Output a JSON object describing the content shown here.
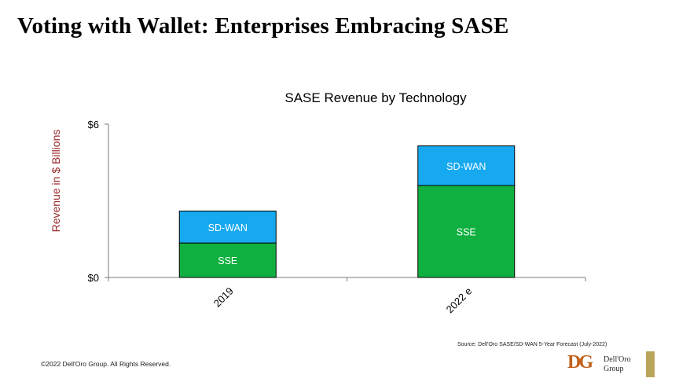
{
  "slide": {
    "title": "Voting with Wallet: Enterprises Embracing SASE",
    "copyright": "©2022 Dell'Oro Group. All Rights Reserved.",
    "source": "Source: Dell'Oro SASE/SD-WAN 5-Year Forecast (July-2022)",
    "logo": {
      "mark": "DG",
      "line1": "Dell'Oro",
      "line2": "Group"
    }
  },
  "chart_data": {
    "type": "bar",
    "stacked": true,
    "title": "SASE Revenue by Technology",
    "ylabel": "Revenue in $ Billions",
    "xlabel": "",
    "categories": [
      "2019",
      "2022 e"
    ],
    "ylim": [
      0,
      6
    ],
    "yticks": [
      {
        "value": 0,
        "label": "$0"
      },
      {
        "value": 6,
        "label": "$6"
      }
    ],
    "series": [
      {
        "name": "SSE",
        "values": [
          1.35,
          3.6
        ],
        "color": "#10b040"
      },
      {
        "name": "SD-WAN",
        "values": [
          1.25,
          1.55
        ],
        "color": "#16a9ef"
      }
    ],
    "grid": false,
    "legend": "none"
  }
}
